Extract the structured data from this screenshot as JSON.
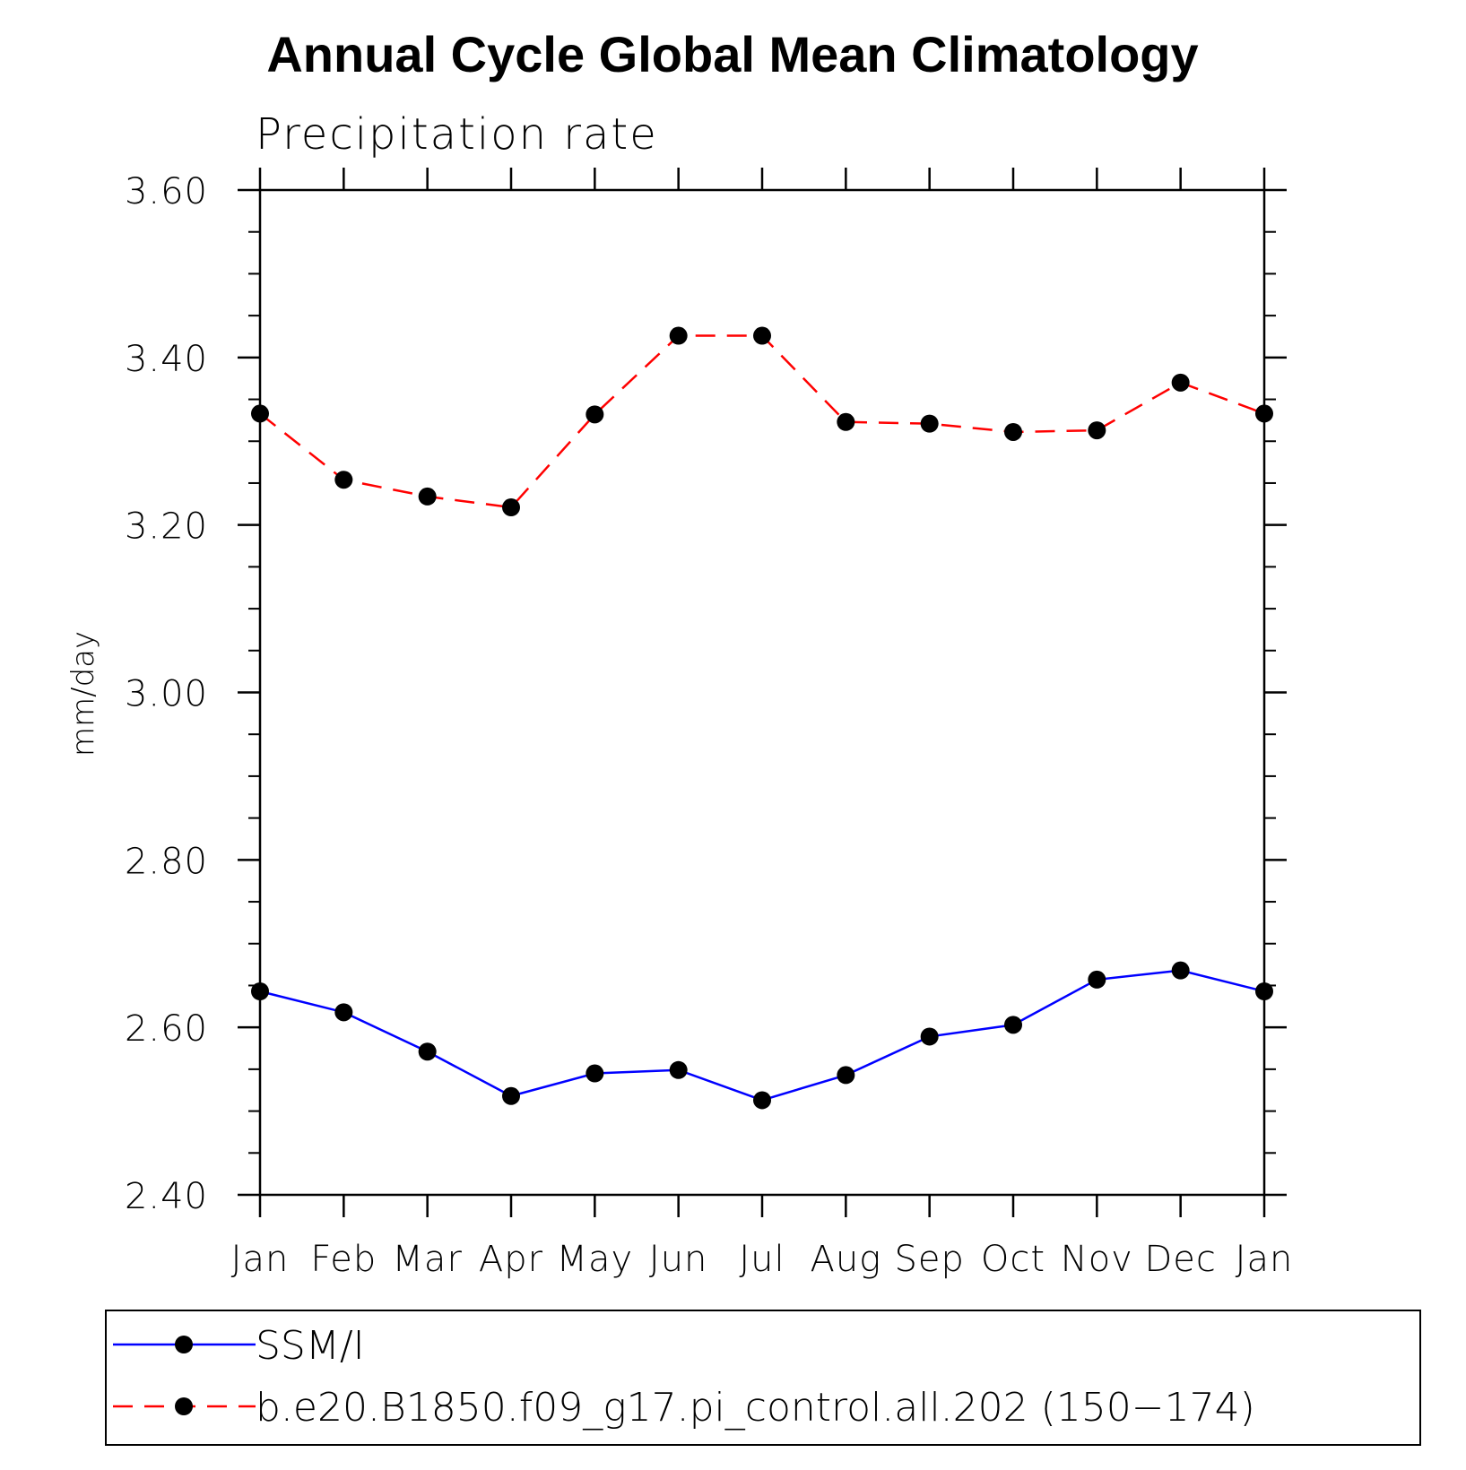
{
  "chart_data": {
    "type": "line",
    "title": "Annual Cycle Global Mean Climatology",
    "subtitle": "Precipitation rate",
    "ylabel": "mm/day",
    "xlabel": "",
    "categories": [
      "Jan",
      "Feb",
      "Mar",
      "Apr",
      "May",
      "Jun",
      "Jul",
      "Aug",
      "Sep",
      "Oct",
      "Nov",
      "Dec",
      "Jan"
    ],
    "ylim": [
      2.4,
      3.6
    ],
    "yticks": [
      "2.40",
      "2.60",
      "2.80",
      "3.00",
      "3.20",
      "3.40",
      "3.60"
    ],
    "grid": false,
    "legend_position": "bottom",
    "series": [
      {
        "name": "SSM/I",
        "color": "#0000ff",
        "dash": "solid",
        "marker": "filled-circle",
        "values": [
          2.643,
          2.618,
          2.571,
          2.518,
          2.545,
          2.549,
          2.513,
          2.543,
          2.589,
          2.603,
          2.657,
          2.668,
          2.643
        ]
      },
      {
        "name": "b.e20.B1850.f09_g17.pi_control.all.202 (150−174)",
        "color": "#ff0000",
        "dash": "dashed",
        "marker": "filled-circle",
        "values": [
          3.333,
          3.254,
          3.234,
          3.221,
          3.332,
          3.426,
          3.426,
          3.323,
          3.321,
          3.311,
          3.313,
          3.37,
          3.333
        ]
      }
    ]
  }
}
